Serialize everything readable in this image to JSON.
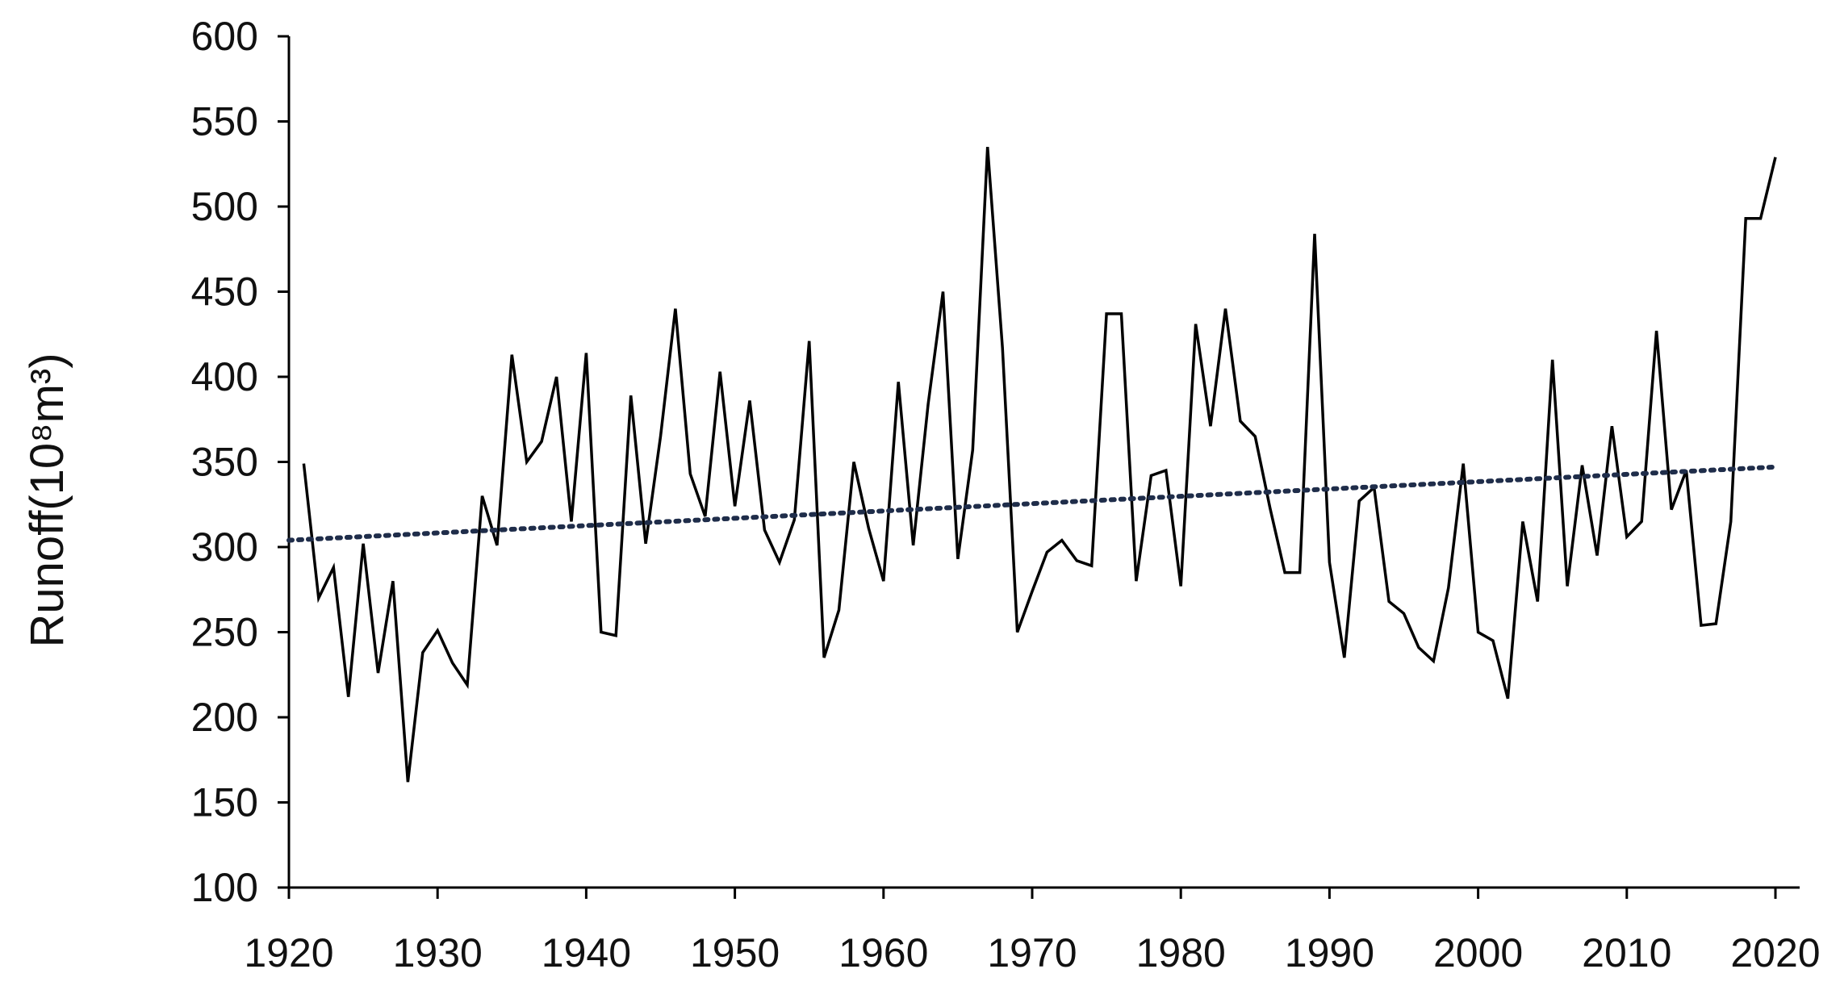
{
  "chart_data": {
    "type": "line",
    "title": "",
    "xlabel": "",
    "ylabel": "Runoff(10⁸m³)",
    "xlim": [
      1920,
      2020
    ],
    "ylim": [
      100,
      600
    ],
    "x_ticks": [
      1920,
      1930,
      1940,
      1950,
      1960,
      1970,
      1980,
      1990,
      2000,
      2010,
      2020
    ],
    "y_ticks": [
      100,
      150,
      200,
      250,
      300,
      350,
      400,
      450,
      500,
      550,
      600
    ],
    "grid": false,
    "legend": "none",
    "series": [
      {
        "style": "solid",
        "color": "#000000",
        "x": [
          1921,
          1922,
          1923,
          1924,
          1925,
          1926,
          1927,
          1928,
          1929,
          1930,
          1931,
          1932,
          1933,
          1934,
          1935,
          1936,
          1937,
          1938,
          1939,
          1940,
          1941,
          1942,
          1943,
          1944,
          1945,
          1946,
          1947,
          1948,
          1949,
          1950,
          1951,
          1952,
          1953,
          1954,
          1955,
          1956,
          1957,
          1958,
          1959,
          1960,
          1961,
          1962,
          1963,
          1964,
          1965,
          1966,
          1967,
          1968,
          1969,
          1970,
          1971,
          1972,
          1973,
          1974,
          1975,
          1976,
          1977,
          1978,
          1979,
          1980,
          1981,
          1982,
          1983,
          1984,
          1985,
          1986,
          1987,
          1988,
          1989,
          1990,
          1991,
          1992,
          1993,
          1994,
          1995,
          1996,
          1997,
          1998,
          1999,
          2000,
          2001,
          2002,
          2003,
          2004,
          2005,
          2006,
          2007,
          2008,
          2009,
          2010,
          2011,
          2012,
          2013,
          2014,
          2015,
          2016,
          2017,
          2018,
          2019,
          2020
        ],
        "values": [
          349,
          270,
          288,
          212,
          302,
          226,
          280,
          162,
          238,
          251,
          232,
          219,
          330,
          301,
          413,
          350,
          362,
          400,
          315,
          414,
          250,
          248,
          389,
          302,
          365,
          440,
          343,
          318,
          403,
          324,
          386,
          310,
          291,
          316,
          421,
          235,
          263,
          350,
          311,
          280,
          397,
          301,
          384,
          450,
          293,
          357,
          535,
          417,
          250,
          274,
          297,
          304,
          292,
          289,
          437,
          437,
          280,
          342,
          345,
          277,
          431,
          371,
          440,
          374,
          365,
          323,
          285,
          285,
          484,
          291,
          235,
          327,
          335,
          268,
          261,
          241,
          233,
          276,
          349,
          250,
          245,
          211,
          315,
          268,
          410,
          277,
          348,
          295,
          371,
          306,
          315,
          427,
          322,
          345,
          254,
          255,
          315,
          493,
          493,
          529
        ]
      },
      {
        "style": "dotted",
        "color": "#1f2d4a",
        "x": [
          1920,
          2020
        ],
        "values": [
          304,
          347
        ]
      }
    ]
  }
}
